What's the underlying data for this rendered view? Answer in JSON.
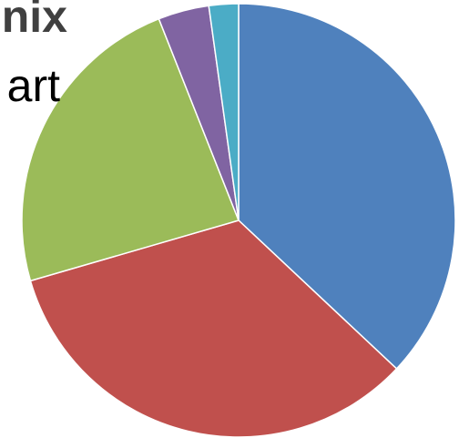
{
  "chart_data": {
    "type": "pie",
    "title": "nix",
    "subtitle": "art",
    "start_angle_deg": 0,
    "direction": "clockwise",
    "slices": [
      {
        "value": 37.0,
        "color": "#4f81bd"
      },
      {
        "value": 33.5,
        "color": "#c0504d"
      },
      {
        "value": 23.5,
        "color": "#9bbb59"
      },
      {
        "value": 3.8,
        "color": "#8064a2"
      },
      {
        "value": 2.2,
        "color": "#4bacc6"
      }
    ]
  }
}
